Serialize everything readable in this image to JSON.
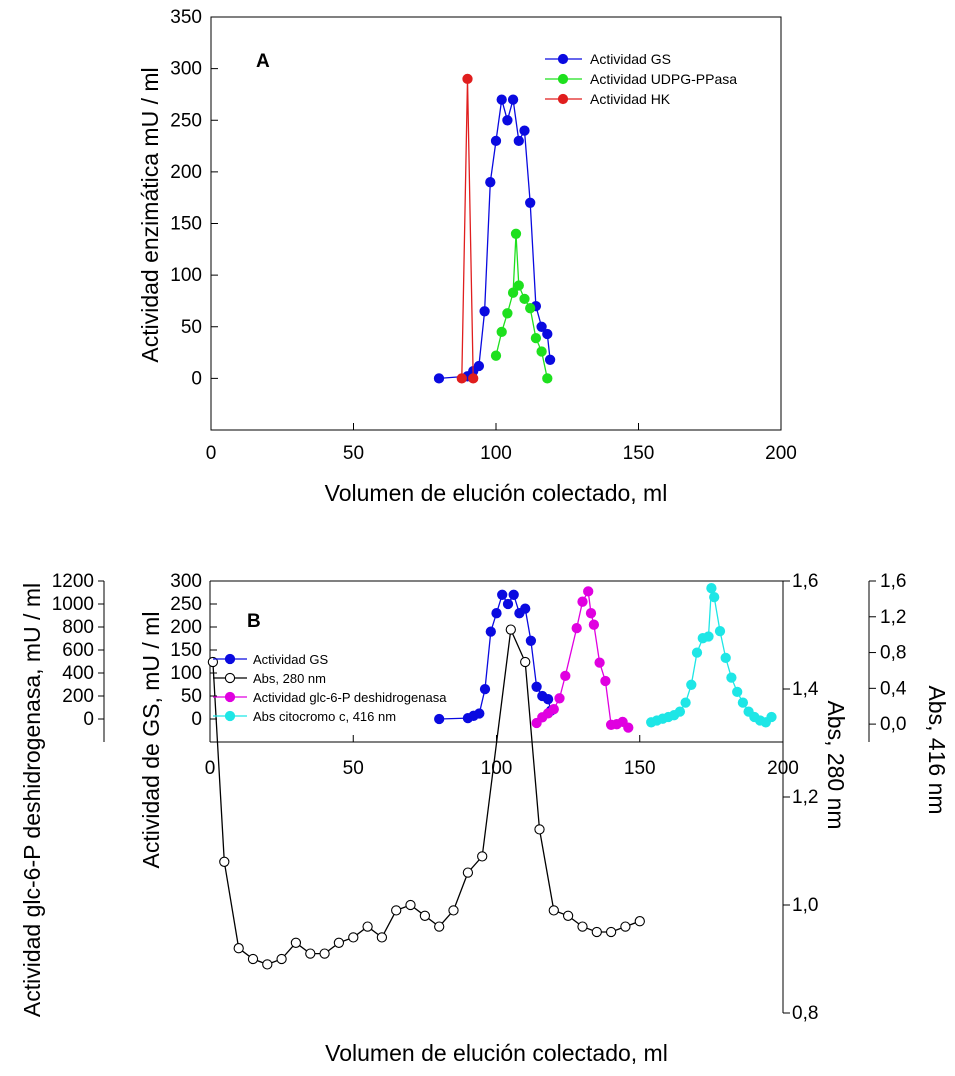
{
  "chart_data": [
    {
      "type": "line",
      "panel_label": "A",
      "xlabel": "Volumen de elución colectado, ml",
      "ylabel": "Actividad enzimática mU / ml",
      "xlim": [
        0,
        200
      ],
      "ylim": [
        -50,
        350
      ],
      "xticks": [
        0,
        50,
        100,
        150,
        200
      ],
      "yticks": [
        0,
        50,
        100,
        150,
        200,
        250,
        300,
        350
      ],
      "grid": false,
      "legend_position": "top-right",
      "series": [
        {
          "name": "Actividad GS",
          "color": "#0a0ae0",
          "marker": "filled",
          "points": [
            [
              80,
              0
            ],
            [
              90,
              2
            ],
            [
              92,
              7
            ],
            [
              94,
              12
            ],
            [
              96,
              65
            ],
            [
              98,
              190
            ],
            [
              100,
              230
            ],
            [
              102,
              270
            ],
            [
              104,
              250
            ],
            [
              106,
              270
            ],
            [
              108,
              230
            ],
            [
              110,
              240
            ],
            [
              112,
              170
            ],
            [
              114,
              70
            ],
            [
              116,
              50
            ],
            [
              118,
              43
            ],
            [
              119,
              18
            ]
          ]
        },
        {
          "name": "Actividad UDPG-PPasa",
          "color": "#1ee01e",
          "marker": "filled",
          "points": [
            [
              100,
              22
            ],
            [
              102,
              45
            ],
            [
              104,
              63
            ],
            [
              106,
              83
            ],
            [
              107,
              140
            ],
            [
              108,
              90
            ],
            [
              110,
              77
            ],
            [
              112,
              68
            ],
            [
              114,
              39
            ],
            [
              116,
              26
            ],
            [
              118,
              0
            ]
          ]
        },
        {
          "name": "Actividad HK",
          "color": "#e01e1e",
          "marker": "filled",
          "points": [
            [
              88,
              0
            ],
            [
              90,
              290
            ],
            [
              92,
              0
            ]
          ]
        }
      ]
    },
    {
      "type": "line",
      "panel_label": "B",
      "xlabel": "Volumen de elución colectado, ml",
      "ylabel_left_outer": "Actividad glc-6-P deshidrogenasa, mU / ml",
      "ylabel_left": "Actividad de GS, mU / ml",
      "ylabel_right": "Abs, 280 nm",
      "ylabel_right_outer": "Abs, 416 nm",
      "xlim": [
        0,
        200
      ],
      "ylim_gs": [
        -50,
        300
      ],
      "ylim_g6p": [
        -200,
        1200
      ],
      "ylim_abs280": [
        0.8,
        1.6
      ],
      "ylim_abs416": [
        -0.2,
        1.6
      ],
      "xticks": [
        0,
        50,
        100,
        150,
        200
      ],
      "yticks_gs": [
        0,
        50,
        100,
        150,
        200,
        250,
        300
      ],
      "yticks_g6p": [
        0,
        200,
        400,
        600,
        800,
        1000,
        1200
      ],
      "yticks_abs280": [
        "0,8",
        "1,0",
        "1,2",
        "1,4",
        "1,6"
      ],
      "yticks_abs416": [
        "0,0",
        "0,4",
        "0,8",
        "1,2",
        "1,6"
      ],
      "grid": false,
      "legend_position": "top-left",
      "series": [
        {
          "name": "Actividad GS",
          "axis": "gs",
          "color": "#0a0ae0",
          "marker": "filled",
          "points": [
            [
              80,
              0
            ],
            [
              90,
              2
            ],
            [
              92,
              7
            ],
            [
              94,
              12
            ],
            [
              96,
              65
            ],
            [
              98,
              190
            ],
            [
              100,
              230
            ],
            [
              102,
              270
            ],
            [
              104,
              250
            ],
            [
              106,
              270
            ],
            [
              108,
              230
            ],
            [
              110,
              240
            ],
            [
              112,
              170
            ],
            [
              114,
              70
            ],
            [
              116,
              50
            ],
            [
              118,
              43
            ],
            [
              119,
              18
            ]
          ]
        },
        {
          "name": "Abs, 280 nm",
          "axis": "abs280",
          "color": "#000000",
          "marker": "open",
          "points": [
            [
              1,
              1.45
            ],
            [
              5,
              1.08
            ],
            [
              10,
              0.92
            ],
            [
              15,
              0.9
            ],
            [
              20,
              0.89
            ],
            [
              25,
              0.9
            ],
            [
              30,
              0.93
            ],
            [
              35,
              0.91
            ],
            [
              40,
              0.91
            ],
            [
              45,
              0.93
            ],
            [
              50,
              0.94
            ],
            [
              55,
              0.96
            ],
            [
              60,
              0.94
            ],
            [
              65,
              0.99
            ],
            [
              70,
              1.0
            ],
            [
              75,
              0.98
            ],
            [
              80,
              0.96
            ],
            [
              85,
              0.99
            ],
            [
              90,
              1.06
            ],
            [
              95,
              1.09
            ],
            [
              105,
              1.51
            ],
            [
              110,
              1.45
            ],
            [
              115,
              1.14
            ],
            [
              120,
              0.99
            ],
            [
              125,
              0.98
            ],
            [
              130,
              0.96
            ],
            [
              135,
              0.95
            ],
            [
              140,
              0.95
            ],
            [
              145,
              0.96
            ],
            [
              150,
              0.97
            ]
          ]
        },
        {
          "name": "Actividad glc-6-P deshidrogenasa",
          "axis": "g6p",
          "color": "#e000e0",
          "marker": "filled",
          "points": [
            [
              114,
              -35
            ],
            [
              116,
              15
            ],
            [
              118,
              50
            ],
            [
              120,
              85
            ],
            [
              122,
              180
            ],
            [
              124,
              375
            ],
            [
              128,
              790
            ],
            [
              130,
              1020
            ],
            [
              132,
              1110
            ],
            [
              133,
              920
            ],
            [
              134,
              820
            ],
            [
              136,
              490
            ],
            [
              138,
              330
            ],
            [
              140,
              -50
            ],
            [
              142,
              -45
            ],
            [
              144,
              -25
            ],
            [
              146,
              -75
            ]
          ]
        },
        {
          "name": "Abs citocromo c, 416 nm",
          "axis": "abs416",
          "color": "#1ee6e6",
          "marker": "filled",
          "points": [
            [
              154,
              0.02
            ],
            [
              156,
              0.04
            ],
            [
              158,
              0.06
            ],
            [
              160,
              0.08
            ],
            [
              162,
              0.1
            ],
            [
              164,
              0.14
            ],
            [
              166,
              0.24
            ],
            [
              168,
              0.44
            ],
            [
              170,
              0.8
            ],
            [
              172,
              0.96
            ],
            [
              174,
              0.98
            ],
            [
              175,
              1.52
            ],
            [
              176,
              1.42
            ],
            [
              178,
              1.04
            ],
            [
              180,
              0.74
            ],
            [
              182,
              0.52
            ],
            [
              184,
              0.36
            ],
            [
              186,
              0.24
            ],
            [
              188,
              0.14
            ],
            [
              190,
              0.08
            ],
            [
              192,
              0.04
            ],
            [
              194,
              0.02
            ],
            [
              196,
              0.08
            ]
          ]
        }
      ]
    }
  ]
}
